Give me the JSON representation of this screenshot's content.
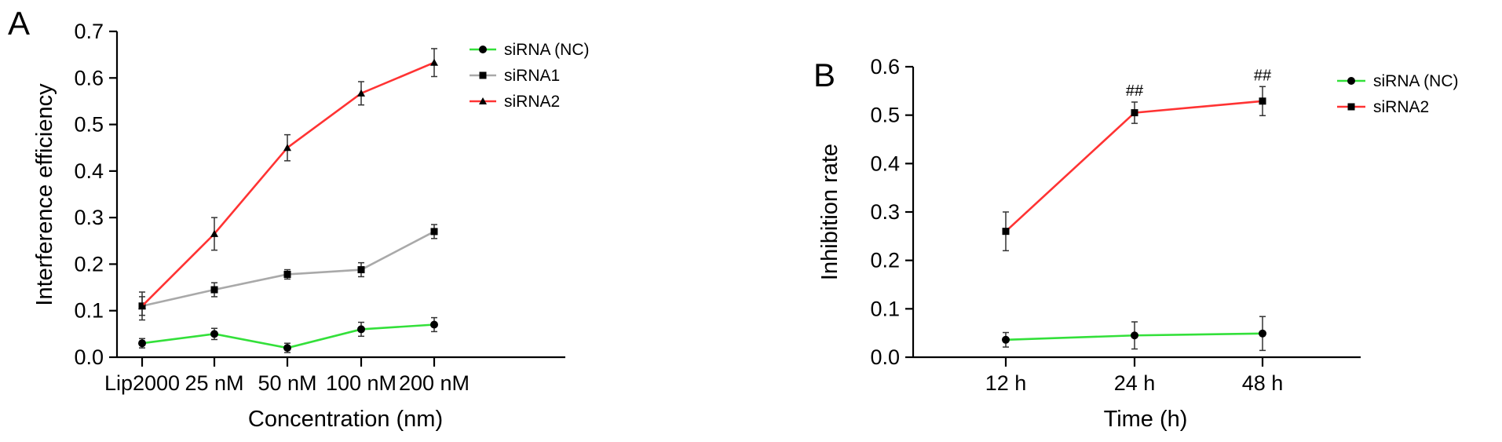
{
  "chart_data": [
    {
      "type": "line",
      "panel": "A",
      "categories": [
        "Lip2000",
        "25 nM",
        "50 nM",
        "100 nM",
        "200 nM"
      ],
      "xlabel": "Concentration (nm)",
      "ylabel": "Interference efficiency",
      "ylim": [
        0.0,
        0.7
      ],
      "yticks": [
        "0.0",
        "0.1",
        "0.2",
        "0.3",
        "0.4",
        "0.5",
        "0.6",
        "0.7"
      ],
      "grid": false,
      "legend_position": "right",
      "series": [
        {
          "name": "siRNA (NC)",
          "color": "#33e03a",
          "marker": "circle",
          "values": [
            0.03,
            0.05,
            0.02,
            0.06,
            0.07
          ],
          "errors": [
            0.01,
            0.012,
            0.01,
            0.015,
            0.015
          ]
        },
        {
          "name": "siRNA1",
          "color": "#a9a9a9",
          "marker": "square",
          "values": [
            0.11,
            0.145,
            0.178,
            0.188,
            0.27
          ],
          "errors": [
            0.02,
            0.015,
            0.01,
            0.015,
            0.015
          ]
        },
        {
          "name": "siRNA2",
          "color": "#ff3333",
          "marker": "triangle",
          "values": [
            0.11,
            0.265,
            0.45,
            0.567,
            0.633
          ],
          "errors": [
            0.03,
            0.035,
            0.028,
            0.025,
            0.03
          ]
        }
      ]
    },
    {
      "type": "line",
      "panel": "B",
      "categories": [
        "12 h",
        "24 h",
        "48 h"
      ],
      "xlabel": "Time (h)",
      "ylabel": "Inhibition rate",
      "ylim": [
        0.0,
        0.6
      ],
      "yticks": [
        "0.0",
        "0.1",
        "0.2",
        "0.3",
        "0.4",
        "0.5",
        "0.6"
      ],
      "grid": false,
      "legend_position": "right",
      "annotations": [
        {
          "category": "24 h",
          "text": "##"
        },
        {
          "category": "48 h",
          "text": "##"
        }
      ],
      "series": [
        {
          "name": "siRNA (NC)",
          "color": "#33e03a",
          "marker": "circle",
          "values": [
            0.036,
            0.045,
            0.049
          ],
          "errors": [
            0.015,
            0.028,
            0.035
          ]
        },
        {
          "name": "siRNA2",
          "color": "#ff3333",
          "marker": "square",
          "values": [
            0.26,
            0.505,
            0.529
          ],
          "errors": [
            0.04,
            0.022,
            0.03
          ]
        }
      ]
    }
  ]
}
